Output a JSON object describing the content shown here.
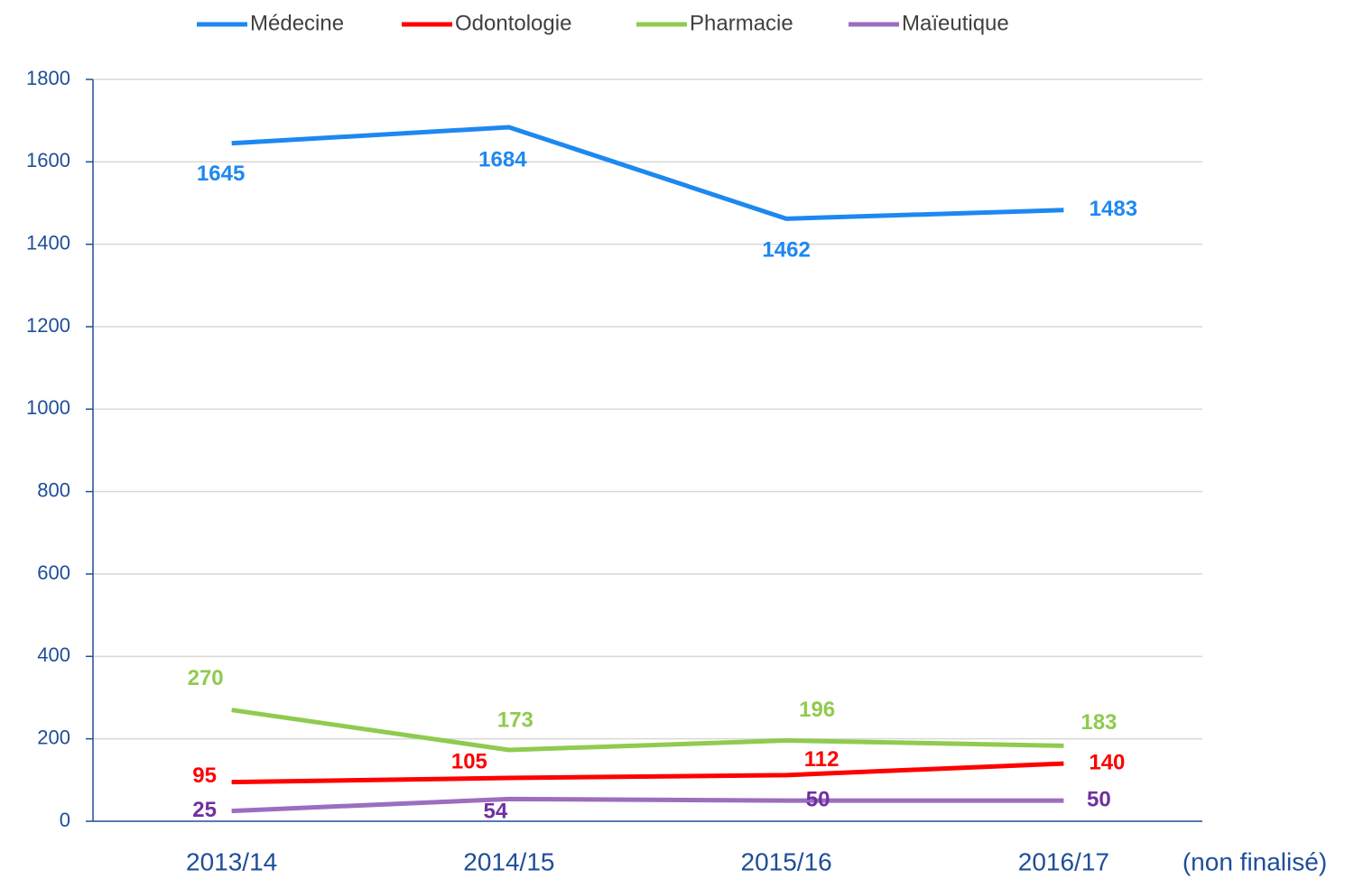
{
  "chart_data": {
    "type": "line",
    "categories": [
      "2013/14",
      "2014/15",
      "2015/16",
      "2016/17"
    ],
    "annotation": "(non finalisé)",
    "series": [
      {
        "name": "Médecine",
        "color": "#1e88f0",
        "label_color": "#1e88f0",
        "values": [
          1645,
          1684,
          1462,
          1483
        ]
      },
      {
        "name": "Odontologie",
        "color": "#ff0000",
        "label_color": "#ff0000",
        "values": [
          95,
          105,
          112,
          140
        ]
      },
      {
        "name": "Pharmacie",
        "color": "#8fcb4f",
        "label_color": "#8fcb4f",
        "values": [
          270,
          173,
          196,
          183
        ]
      },
      {
        "name": "Maïeutique",
        "color": "#9b6ec0",
        "label_color": "#7030a0",
        "values": [
          25,
          54,
          50,
          50
        ]
      }
    ],
    "ylim": [
      0,
      1800
    ],
    "yticks": [
      0,
      200,
      400,
      600,
      800,
      1000,
      1200,
      1400,
      1600,
      1800
    ],
    "grid": true,
    "legend": "top"
  }
}
